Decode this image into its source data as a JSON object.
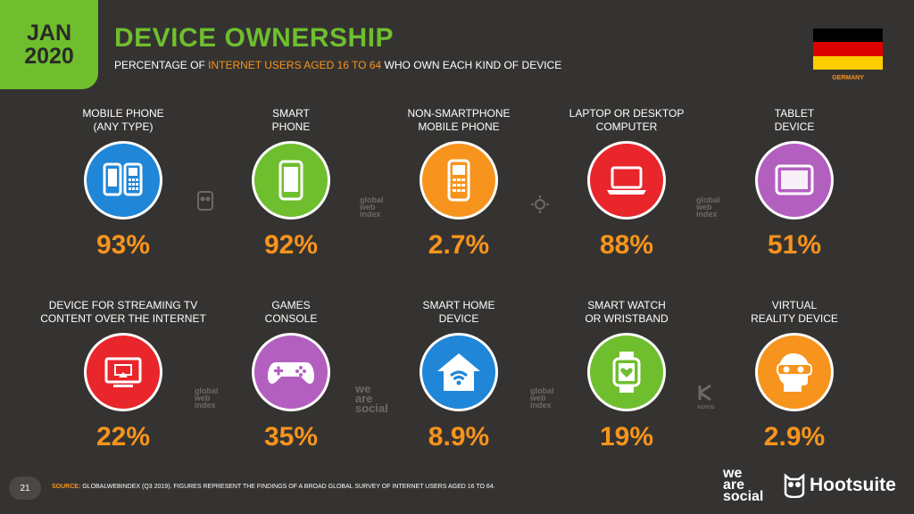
{
  "header": {
    "month": "JAN",
    "year": "2020",
    "title": "DEVICE OWNERSHIP",
    "subtitle_pre": "PERCENTAGE OF ",
    "subtitle_highlight": "INTERNET USERS AGED 16 TO 64",
    "subtitle_post": " WHO OWN EACH KIND OF DEVICE",
    "country": "GERMANY"
  },
  "colors": {
    "accent_green": "#6fbe2e",
    "accent_orange": "#f7941d",
    "background": "#353331"
  },
  "devices": [
    {
      "label_1": "MOBILE PHONE",
      "label_2": "(ANY TYPE)",
      "value": "93%",
      "color": "#1f86d8",
      "icon": "mobile-phones-icon"
    },
    {
      "label_1": "SMART",
      "label_2": "PHONE",
      "value": "92%",
      "color": "#6fbe2e",
      "icon": "smartphone-icon"
    },
    {
      "label_1": "NON-SMARTPHONE",
      "label_2": "MOBILE PHONE",
      "value": "2.7%",
      "color": "#f7941d",
      "icon": "feature-phone-icon"
    },
    {
      "label_1": "LAPTOP OR DESKTOP",
      "label_2": "COMPUTER",
      "value": "88%",
      "color": "#e8262b",
      "icon": "laptop-icon"
    },
    {
      "label_1": "TABLET",
      "label_2": "DEVICE",
      "value": "51%",
      "color": "#b35fc0",
      "icon": "tablet-icon"
    },
    {
      "label_1": "DEVICE FOR STREAMING TV",
      "label_2": "CONTENT OVER THE INTERNET",
      "value": "22%",
      "color": "#e8262b",
      "icon": "streaming-tv-icon"
    },
    {
      "label_1": "GAMES",
      "label_2": "CONSOLE",
      "value": "35%",
      "color": "#b35fc0",
      "icon": "game-controller-icon"
    },
    {
      "label_1": "SMART HOME",
      "label_2": "DEVICE",
      "value": "8.9%",
      "color": "#1f86d8",
      "icon": "smart-home-icon"
    },
    {
      "label_1": "SMART WATCH",
      "label_2": "OR WRISTBAND",
      "value": "19%",
      "color": "#6fbe2e",
      "icon": "smartwatch-icon"
    },
    {
      "label_1": "VIRTUAL",
      "label_2": "REALITY DEVICE",
      "value": "2.9%",
      "color": "#f7941d",
      "icon": "vr-headset-icon"
    }
  ],
  "watermarks": {
    "gwi_1": "global",
    "gwi_2": "web",
    "gwi_3": "index",
    "was_1": "we",
    "was_2": "are",
    "was_3": "social",
    "kepios": "KEPIOS"
  },
  "footer": {
    "page_number": "21",
    "source_label": "SOURCE:",
    "source_text": " GLOBALWEBINDEX (Q3 2019). FIGURES REPRESENT THE FINDINGS OF A BROAD GLOBAL SURVEY OF INTERNET USERS AGED 16 TO 64.",
    "brand_1": "we",
    "brand_2": "are",
    "brand_3": "social",
    "brand_hootsuite": "Hootsuite"
  }
}
